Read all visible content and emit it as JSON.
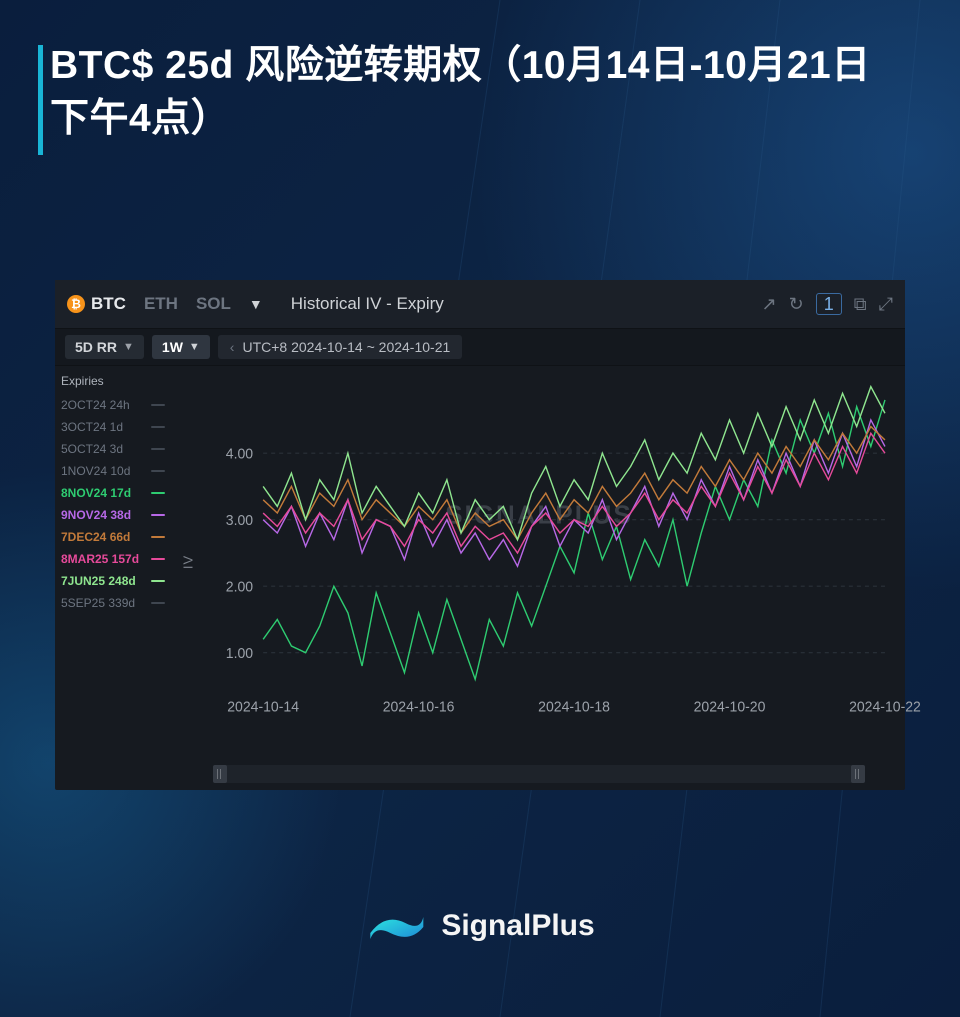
{
  "header": {
    "title": "BTC$ 25d 风险逆转期权（10月14日-10月21日下午4点）"
  },
  "panel": {
    "tabs": {
      "btc": "BTC",
      "eth": "ETH",
      "sol": "SOL"
    },
    "title": "Historical IV - Expiry",
    "badge": "1",
    "metric": "5D RR",
    "timeframe": "1W",
    "range": "UTC+8 2024-10-14 ~ 2024-10-21",
    "watermark": "SIGNALPLUS"
  },
  "legend": {
    "title": "Expiries",
    "items": [
      {
        "label": "2OCT24 24h",
        "color": "#6d7581",
        "active": false
      },
      {
        "label": "3OCT24 1d",
        "color": "#6d7581",
        "active": false
      },
      {
        "label": "5OCT24 3d",
        "color": "#6d7581",
        "active": false
      },
      {
        "label": "1NOV24 10d",
        "color": "#6d7581",
        "active": false
      },
      {
        "label": "8NOV24 17d",
        "color": "#2ecc71",
        "active": true
      },
      {
        "label": "9NOV24 38d",
        "color": "#b768e6",
        "active": true
      },
      {
        "label": "7DEC24 66d",
        "color": "#c27a3a",
        "active": true
      },
      {
        "label": "8MAR25 157d",
        "color": "#e64a9a",
        "active": true
      },
      {
        "label": "7JUN25 248d",
        "color": "#8fe68f",
        "active": true
      },
      {
        "label": "5SEP25 339d",
        "color": "#6d7581",
        "active": false
      }
    ]
  },
  "chart": {
    "type": "line",
    "ylabel": "IV",
    "ylim": [
      0.5,
      5.0
    ],
    "yticks": [
      1.0,
      2.0,
      3.0,
      4.0
    ],
    "ytick_labels": [
      "1.00",
      "2.00",
      "3.00",
      "4.00"
    ],
    "xticks": [
      0,
      0.25,
      0.5,
      0.75,
      1.0
    ],
    "xtick_labels": [
      "2024-10-14",
      "2024-10-16",
      "2024-10-18",
      "2024-10-20",
      "2024-10-22"
    ],
    "background_color": "#161a20",
    "grid_color": "#2a3139",
    "line_width": 1.4,
    "series": [
      {
        "name": "8NOV24",
        "color": "#2ecc71",
        "data": [
          1.2,
          1.5,
          1.1,
          1.0,
          1.4,
          2.0,
          1.6,
          0.8,
          1.9,
          1.3,
          0.7,
          1.6,
          1.0,
          1.8,
          1.2,
          0.6,
          1.5,
          1.1,
          1.9,
          1.4,
          2.0,
          2.6,
          2.2,
          3.1,
          2.4,
          2.9,
          2.1,
          2.7,
          2.3,
          3.0,
          2.0,
          2.8,
          3.5,
          3.0,
          3.6,
          3.2,
          4.2,
          3.7,
          4.5,
          4.0,
          4.6,
          3.8,
          4.7,
          4.1,
          4.8
        ]
      },
      {
        "name": "9NOV24",
        "color": "#b768e6",
        "data": [
          3.0,
          2.8,
          3.2,
          2.6,
          3.1,
          2.7,
          3.3,
          2.5,
          3.0,
          2.9,
          2.4,
          3.1,
          2.6,
          3.0,
          2.5,
          2.8,
          2.4,
          2.7,
          2.3,
          2.9,
          3.2,
          2.6,
          3.0,
          2.8,
          3.3,
          2.7,
          3.1,
          3.5,
          2.9,
          3.4,
          3.0,
          3.6,
          3.2,
          3.8,
          3.3,
          3.9,
          3.4,
          4.0,
          3.5,
          4.2,
          3.7,
          4.3,
          3.8,
          4.5,
          4.1
        ]
      },
      {
        "name": "7DEC24",
        "color": "#c27a3a",
        "data": [
          3.3,
          3.1,
          3.5,
          3.0,
          3.4,
          3.2,
          3.6,
          3.0,
          3.3,
          3.1,
          2.9,
          3.2,
          3.0,
          3.3,
          2.8,
          3.1,
          2.9,
          3.0,
          2.7,
          3.1,
          3.4,
          3.0,
          3.3,
          3.1,
          3.5,
          3.2,
          3.4,
          3.7,
          3.3,
          3.6,
          3.4,
          3.8,
          3.5,
          3.9,
          3.6,
          4.0,
          3.7,
          4.1,
          3.8,
          4.2,
          3.9,
          4.3,
          4.0,
          4.4,
          4.2
        ]
      },
      {
        "name": "8MAR25",
        "color": "#e64a9a",
        "data": [
          3.1,
          2.9,
          3.2,
          2.8,
          3.1,
          2.9,
          3.3,
          2.7,
          3.0,
          2.9,
          2.6,
          3.0,
          2.8,
          3.1,
          2.6,
          2.9,
          2.7,
          2.8,
          2.5,
          2.9,
          3.1,
          2.8,
          3.0,
          2.9,
          3.2,
          2.9,
          3.1,
          3.4,
          3.0,
          3.3,
          3.1,
          3.5,
          3.2,
          3.7,
          3.3,
          3.8,
          3.4,
          3.9,
          3.5,
          4.0,
          3.6,
          4.1,
          3.7,
          4.3,
          4.0
        ]
      },
      {
        "name": "7JUN25",
        "color": "#8fe68f",
        "data": [
          3.5,
          3.2,
          3.7,
          3.0,
          3.6,
          3.3,
          4.0,
          3.1,
          3.5,
          3.2,
          2.9,
          3.4,
          3.1,
          3.6,
          2.8,
          3.3,
          3.0,
          3.2,
          2.7,
          3.4,
          3.8,
          3.2,
          3.6,
          3.3,
          4.0,
          3.5,
          3.8,
          4.2,
          3.6,
          4.0,
          3.7,
          4.3,
          3.9,
          4.5,
          4.0,
          4.6,
          4.1,
          4.7,
          4.2,
          4.8,
          4.3,
          4.9,
          4.4,
          5.0,
          4.6
        ]
      }
    ]
  },
  "footer": {
    "brand": "SignalPlus",
    "logo_colors": [
      "#1dd6f5",
      "#1e88d6"
    ]
  }
}
